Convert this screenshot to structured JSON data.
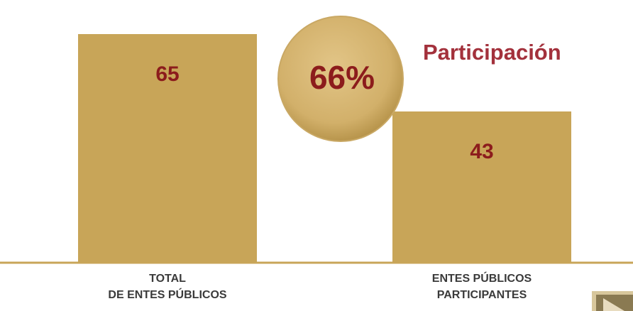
{
  "chart_data": {
    "type": "bar",
    "categories": [
      [
        "TOTAL",
        "DE ENTES PÚBLICOS"
      ],
      [
        "ENTES PÚBLICOS",
        "PARTICIPANTES"
      ]
    ],
    "values": [
      65,
      43
    ],
    "color": "#c8a558",
    "label_color": "#8c1c1c",
    "annotation": {
      "value": 66,
      "label": "66%"
    },
    "annotation_title": "Participación"
  }
}
